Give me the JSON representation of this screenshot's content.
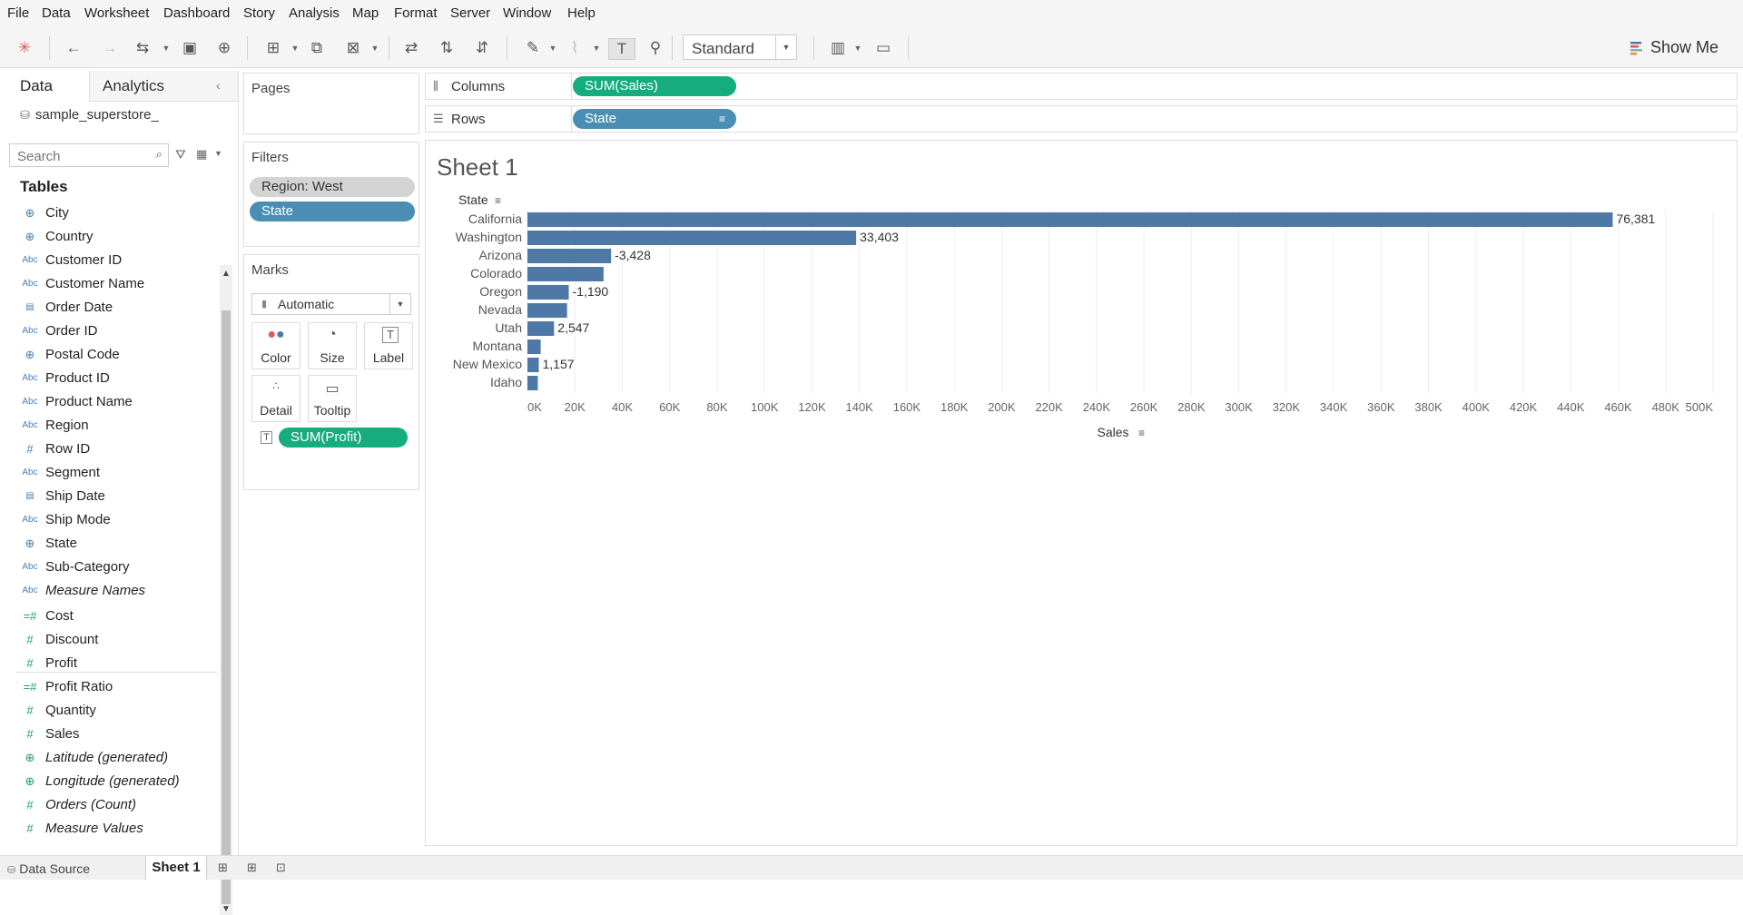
{
  "menu": [
    "File",
    "Data",
    "Worksheet",
    "Dashboard",
    "Story",
    "Analysis",
    "Map",
    "Format",
    "Server",
    "Window",
    "Help"
  ],
  "toolbar": {
    "fit_value": "Standard",
    "show_me": "Show Me"
  },
  "data_pane": {
    "tab_data": "Data",
    "tab_analytics": "Analytics",
    "datasource": "sample_superstore_",
    "search_placeholder": "Search",
    "tables_heading": "Tables",
    "dimensions": [
      {
        "name": "City",
        "icon": "globe-icon"
      },
      {
        "name": "Country",
        "icon": "globe-icon"
      },
      {
        "name": "Customer ID",
        "icon": "abc-icon"
      },
      {
        "name": "Customer Name",
        "icon": "abc-icon"
      },
      {
        "name": "Order Date",
        "icon": "calendar-icon"
      },
      {
        "name": "Order ID",
        "icon": "abc-icon"
      },
      {
        "name": "Postal Code",
        "icon": "globe-icon"
      },
      {
        "name": "Product ID",
        "icon": "abc-icon"
      },
      {
        "name": "Product Name",
        "icon": "abc-icon"
      },
      {
        "name": "Region",
        "icon": "abc-icon"
      },
      {
        "name": "Row ID",
        "icon": "hash-icon"
      },
      {
        "name": "Segment",
        "icon": "abc-icon"
      },
      {
        "name": "Ship Date",
        "icon": "calendar-icon"
      },
      {
        "name": "Ship Mode",
        "icon": "abc-icon"
      },
      {
        "name": "State",
        "icon": "globe-icon"
      },
      {
        "name": "Sub-Category",
        "icon": "abc-icon"
      },
      {
        "name": "Measure Names",
        "icon": "abc-icon"
      }
    ],
    "measures": [
      {
        "name": "Cost",
        "icon": "calc-hash-icon"
      },
      {
        "name": "Discount",
        "icon": "hash-icon"
      },
      {
        "name": "Profit",
        "icon": "hash-icon"
      },
      {
        "name": "Profit Ratio",
        "icon": "calc-hash-icon"
      },
      {
        "name": "Quantity",
        "icon": "hash-icon"
      },
      {
        "name": "Sales",
        "icon": "hash-icon"
      },
      {
        "name": "Latitude (generated)",
        "icon": "globe-icon"
      },
      {
        "name": "Longitude (generated)",
        "icon": "globe-icon"
      },
      {
        "name": "Orders (Count)",
        "icon": "hash-icon"
      },
      {
        "name": "Measure Values",
        "icon": "hash-icon"
      }
    ]
  },
  "cards": {
    "pages_title": "Pages",
    "filters_title": "Filters",
    "filters": [
      "Region: West",
      "State"
    ],
    "marks_title": "Marks",
    "mark_type": "Automatic",
    "mark_buttons": [
      "Color",
      "Size",
      "Label",
      "Detail",
      "Tooltip"
    ],
    "marks_pill": "SUM(Profit)"
  },
  "shelves": {
    "columns_label": "Columns",
    "columns_pill": "SUM(Sales)",
    "rows_label": "Rows",
    "rows_pill": "State"
  },
  "sheet": {
    "title": "Sheet 1"
  },
  "colors": {
    "bar": "#4e79a7",
    "green_pill": "#15ad7e",
    "blue_pill": "#4a8fb3"
  },
  "chart_data": {
    "type": "bar",
    "orientation": "horizontal",
    "row_header": "State",
    "categories": [
      "California",
      "Washington",
      "Arizona",
      "Colorado",
      "Oregon",
      "Nevada",
      "Utah",
      "Montana",
      "New Mexico",
      "Idaho"
    ],
    "values": [
      457688,
      138641,
      35282,
      32108,
      17431,
      16729,
      11220,
      5589,
      4784,
      4382
    ],
    "labels": [
      "76,381",
      "33,403",
      "-3,428",
      "",
      "-1,190",
      "",
      "2,547",
      "",
      "1,157",
      ""
    ],
    "xlabel": "Sales",
    "xlim": [
      0,
      500000
    ],
    "xticks": [
      0,
      20000,
      40000,
      60000,
      80000,
      100000,
      120000,
      140000,
      160000,
      180000,
      200000,
      220000,
      240000,
      260000,
      280000,
      300000,
      320000,
      340000,
      360000,
      380000,
      400000,
      420000,
      440000,
      460000,
      480000,
      500000
    ],
    "xtick_labels": [
      "0K",
      "20K",
      "40K",
      "60K",
      "80K",
      "100K",
      "120K",
      "140K",
      "160K",
      "180K",
      "200K",
      "220K",
      "240K",
      "260K",
      "280K",
      "300K",
      "320K",
      "340K",
      "360K",
      "380K",
      "400K",
      "420K",
      "440K",
      "460K",
      "480K",
      "500K"
    ],
    "grid": true
  },
  "bottom": {
    "datasource_tab": "Data Source",
    "sheet_tab": "Sheet 1"
  }
}
